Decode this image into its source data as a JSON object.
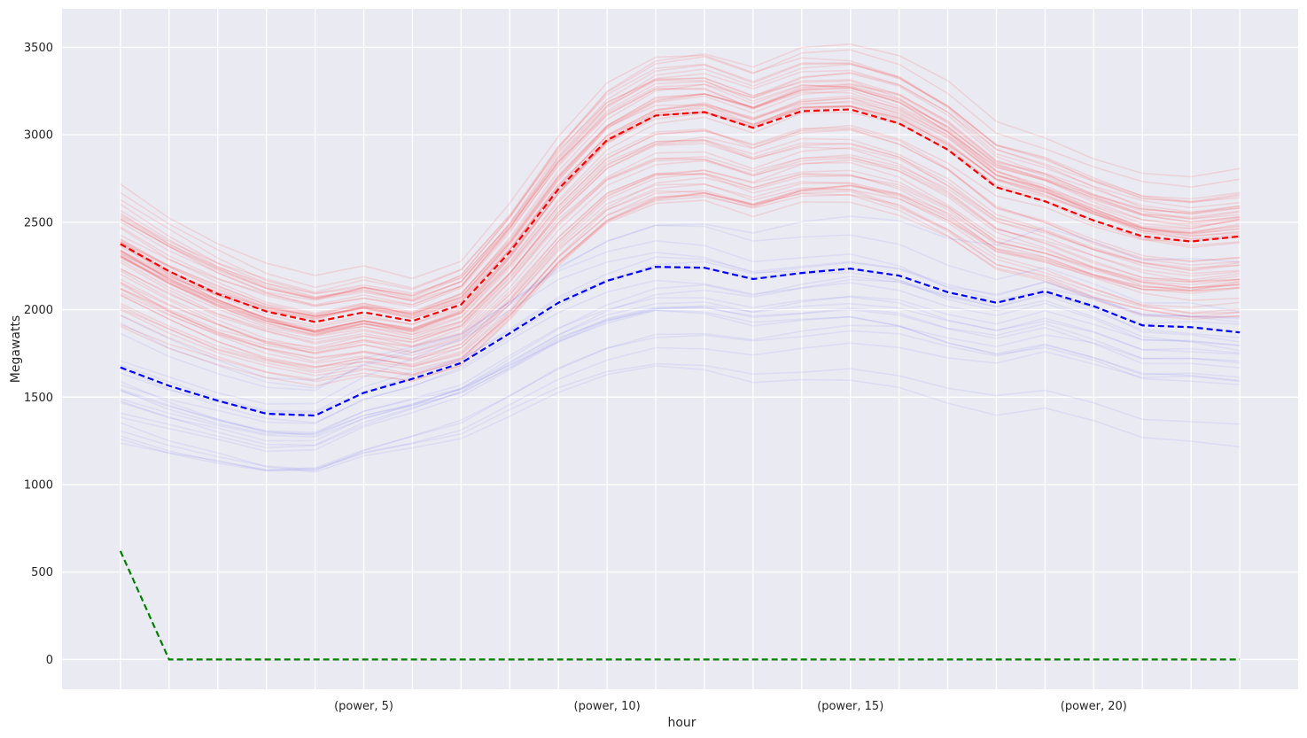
{
  "chart_data": {
    "type": "line",
    "title": "",
    "xlabel": "hour",
    "ylabel": "Megawatts",
    "xlim": [
      -1.2,
      24.2
    ],
    "ylim": [
      -170,
      3720
    ],
    "x": [
      0,
      1,
      2,
      3,
      4,
      5,
      6,
      7,
      8,
      9,
      10,
      11,
      12,
      13,
      14,
      15,
      16,
      17,
      18,
      19,
      20,
      21,
      22,
      23
    ],
    "xticks": [
      5,
      10,
      15,
      20
    ],
    "xtick_labels": [
      "(power, 5)",
      "(power, 10)",
      "(power, 15)",
      "(power, 20)"
    ],
    "x_gridlines": [
      0,
      1,
      2,
      3,
      4,
      5,
      6,
      7,
      8,
      9,
      10,
      11,
      12,
      13,
      14,
      15,
      16,
      17,
      18,
      19,
      20,
      21,
      22,
      23
    ],
    "yticks": [
      0,
      500,
      1000,
      1500,
      2000,
      2500,
      3000,
      3500
    ],
    "ytick_labels": [
      "0",
      "500",
      "1000",
      "1500",
      "2000",
      "2500",
      "3000",
      "3500"
    ],
    "grid": true,
    "background": "#eaeaf2",
    "series": [
      {
        "color": "#ff0000",
        "style": "dashed",
        "values": [
          2375,
          2220,
          2090,
          1990,
          1930,
          1985,
          1935,
          2030,
          2330,
          2690,
          2970,
          3110,
          3130,
          3040,
          3135,
          3145,
          3065,
          2915,
          2700,
          2620,
          2510,
          2420,
          2390,
          2420
        ]
      },
      {
        "color": "#0000ff",
        "style": "dashed",
        "values": [
          1670,
          1565,
          1480,
          1405,
          1395,
          1525,
          1605,
          1695,
          1865,
          2040,
          2165,
          2245,
          2240,
          2175,
          2210,
          2235,
          2195,
          2100,
          2040,
          2105,
          2020,
          1910,
          1900,
          1870
        ]
      },
      {
        "color": "#008000",
        "style": "dashed",
        "values": [
          620,
          0,
          0,
          0,
          0,
          0,
          0,
          0,
          0,
          0,
          0,
          0,
          0,
          0,
          0,
          0,
          0,
          0,
          0,
          0,
          0,
          0,
          0,
          0
        ]
      }
    ],
    "background_series_groups": [
      {
        "color": "#ff0000",
        "opacity": 0.1,
        "count": 60,
        "style": "solid"
      },
      {
        "color": "#0000ff",
        "opacity": 0.06,
        "count": 22,
        "style": "solid"
      }
    ]
  }
}
